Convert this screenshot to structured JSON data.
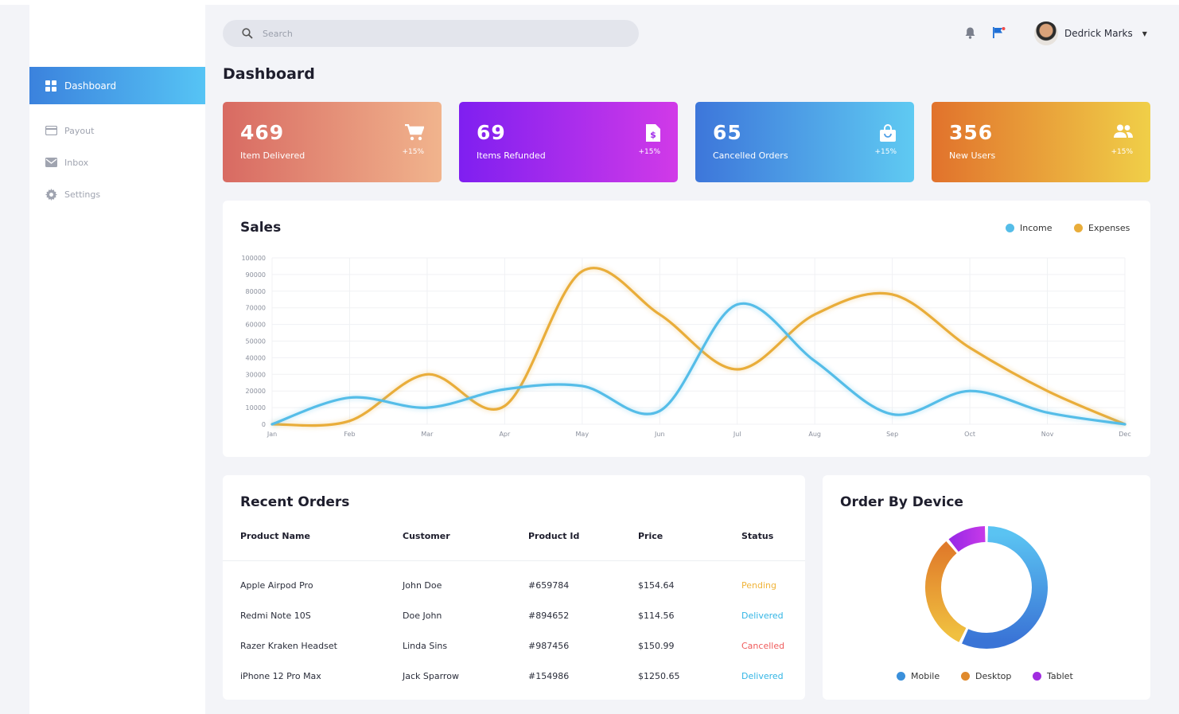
{
  "search": {
    "placeholder": "Search"
  },
  "user": {
    "name": "Dedrick Marks"
  },
  "sidebar": {
    "items": [
      {
        "label": "Dashboard"
      },
      {
        "label": "Payout"
      },
      {
        "label": "Inbox"
      },
      {
        "label": "Settings"
      }
    ]
  },
  "page_title": "Dashboard",
  "stats": [
    {
      "value": "469",
      "label": "Item Delivered",
      "change": "+15%"
    },
    {
      "value": "69",
      "label": "Items Refunded",
      "change": "+15%"
    },
    {
      "value": "65",
      "label": "Cancelled Orders",
      "change": "+15%"
    },
    {
      "value": "356",
      "label": "New Users",
      "change": "+15%"
    }
  ],
  "sales": {
    "title": "Sales",
    "legend": [
      "Income",
      "Expenses"
    ]
  },
  "chart_data": {
    "type": "line",
    "title": "Sales",
    "categories": [
      "Jan",
      "Feb",
      "Mar",
      "Apr",
      "May",
      "Jun",
      "Jul",
      "Aug",
      "Sep",
      "Oct",
      "Nov",
      "Dec"
    ],
    "yticks": [
      "0",
      "10000",
      "20000",
      "30000",
      "40000",
      "50000",
      "60000",
      "70000",
      "80000",
      "90000",
      "100000"
    ],
    "ylim": [
      0,
      100000
    ],
    "grid": true,
    "legend_position": "top-right",
    "series": [
      {
        "name": "Income",
        "color": "#55bde8",
        "values": [
          0,
          16000,
          10000,
          21000,
          23000,
          8000,
          72000,
          38000,
          6000,
          20000,
          7000,
          0
        ]
      },
      {
        "name": "Expenses",
        "color": "#e9ad3a",
        "values": [
          0,
          2000,
          30000,
          11000,
          92000,
          66000,
          33000,
          66000,
          78000,
          46000,
          20000,
          0
        ]
      }
    ]
  },
  "orders": {
    "title": "Recent Orders",
    "headers": [
      "Product Name",
      "Customer",
      "Product Id",
      "Price",
      "Status"
    ],
    "rows": [
      {
        "product": "Apple Airpod Pro",
        "customer": "John Doe",
        "id": "#659784",
        "price": "$154.64",
        "status": "Pending",
        "status_color": "#f0b43a"
      },
      {
        "product": "Redmi Note 10S",
        "customer": "Doe John",
        "id": "#894652",
        "price": "$114.56",
        "status": "Delivered",
        "status_color": "#33b5e5"
      },
      {
        "product": "Razer Kraken Headset",
        "customer": "Linda Sins",
        "id": "#987456",
        "price": "$150.99",
        "status": "Cancelled",
        "status_color": "#ef5b5b"
      },
      {
        "product": "iPhone 12 Pro Max",
        "customer": "Jack Sparrow",
        "id": "#154986",
        "price": "$1250.65",
        "status": "Delivered",
        "status_color": "#33b5e5"
      }
    ]
  },
  "device": {
    "title": "Order By Device",
    "legend": [
      "Mobile",
      "Desktop",
      "Tablet"
    ],
    "donut": [
      {
        "name": "Mobile",
        "value": 57,
        "color": "#4a9ee6"
      },
      {
        "name": "Desktop",
        "value": 32,
        "color": "#e08a2c"
      },
      {
        "name": "Tablet",
        "value": 11,
        "color": "#a12de0"
      }
    ]
  }
}
